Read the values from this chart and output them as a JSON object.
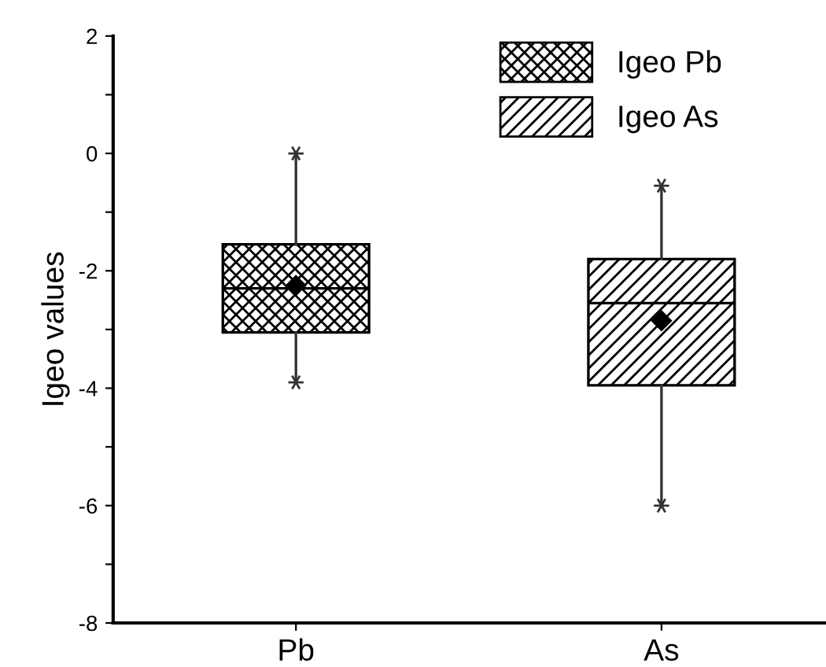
{
  "chart_data": {
    "type": "box",
    "ylabel": "Igeo values",
    "categories": [
      "Pb",
      "As"
    ],
    "series": [
      {
        "name": "Igeo Pb",
        "color": "#000000",
        "boxes": [
          {
            "low": -3.9,
            "q1": -3.05,
            "median": -2.3,
            "q3": -1.55,
            "high": 0,
            "mean": -2.25
          },
          null
        ]
      },
      {
        "name": "Igeo As",
        "color": "#000000",
        "boxes": [
          null,
          {
            "low": -6,
            "q1": -3.95,
            "median": -2.55,
            "q3": -1.8,
            "high": -0.55,
            "mean": -2.85
          }
        ]
      }
    ],
    "ylim": [
      -8,
      2
    ],
    "yticks": [
      -8,
      {
        "value": -7,
        "label": null
      },
      -6,
      {
        "value": -5,
        "label": null
      },
      -4,
      {
        "value": -3,
        "label": null
      },
      -2,
      {
        "value": -1,
        "label": null
      },
      0,
      {
        "value": 1,
        "label": null
      },
      2
    ],
    "grid": false,
    "legend": "top right"
  }
}
